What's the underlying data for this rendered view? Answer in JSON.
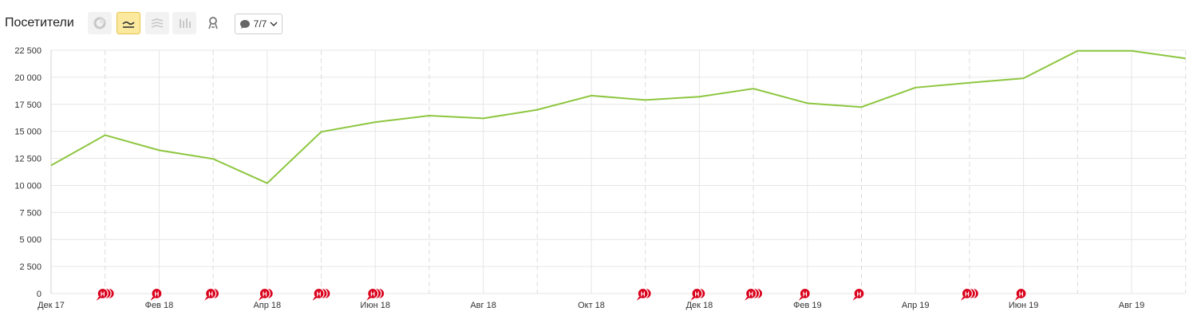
{
  "toolbar": {
    "title": "Посетители",
    "buttons": [
      {
        "name": "pie-chart-icon",
        "active": false
      },
      {
        "name": "line-chart-icon",
        "active": true
      },
      {
        "name": "area-chart-icon",
        "active": false
      },
      {
        "name": "bar-chart-icon",
        "active": false
      },
      {
        "name": "map-pin-icon",
        "active": false
      }
    ],
    "notes_label": "7/7"
  },
  "chart_data": {
    "type": "line",
    "title": "",
    "xlabel": "",
    "ylabel": "",
    "ylim": [
      0,
      22500
    ],
    "y_ticks": [
      "0",
      "2 500",
      "5 000",
      "7 500",
      "10 000",
      "12 500",
      "15 000",
      "17 500",
      "20 000",
      "22 500"
    ],
    "x_tick_labels": [
      "Дек 17",
      "Фев 18",
      "Апр 18",
      "Июн 18",
      "Авг 18",
      "Окт 18",
      "Дек 18",
      "Фев 19",
      "Апр 19",
      "Июн 19",
      "Авг 19"
    ],
    "grid": true,
    "series": [
      {
        "color": "#8dc63f",
        "x": [
          "2017-12",
          "2018-01",
          "2018-02",
          "2018-03",
          "2018-04",
          "2018-05",
          "2018-06",
          "2018-07",
          "2018-08",
          "2018-09",
          "2018-10",
          "2018-11",
          "2018-12",
          "2019-01",
          "2019-02",
          "2019-03",
          "2019-04",
          "2019-05",
          "2019-06",
          "2019-07",
          "2019-08",
          "2019-09"
        ],
        "values": [
          11850,
          14650,
          13250,
          12450,
          10200,
          14950,
          15850,
          16450,
          16200,
          17000,
          18300,
          17900,
          18200,
          18950,
          17600,
          17250,
          19050,
          19500,
          19900,
          22450,
          22450,
          21750
        ]
      }
    ],
    "annotations": {
      "marker_label": "Н",
      "marker_color": "#d9001b",
      "markers": [
        {
          "x": "2018-01",
          "count": 3
        },
        {
          "x": "2018-02",
          "count": 1
        },
        {
          "x": "2018-03",
          "count": 2
        },
        {
          "x": "2018-04",
          "count": 2
        },
        {
          "x": "2018-05",
          "count": 3
        },
        {
          "x": "2018-06",
          "count": 3
        },
        {
          "x": "2018-11",
          "count": 2
        },
        {
          "x": "2018-12",
          "count": 2
        },
        {
          "x": "2019-01",
          "count": 3
        },
        {
          "x": "2019-02",
          "count": 1
        },
        {
          "x": "2019-03",
          "count": 1
        },
        {
          "x": "2019-05",
          "count": 3
        },
        {
          "x": "2019-06",
          "count": 1
        }
      ]
    }
  }
}
